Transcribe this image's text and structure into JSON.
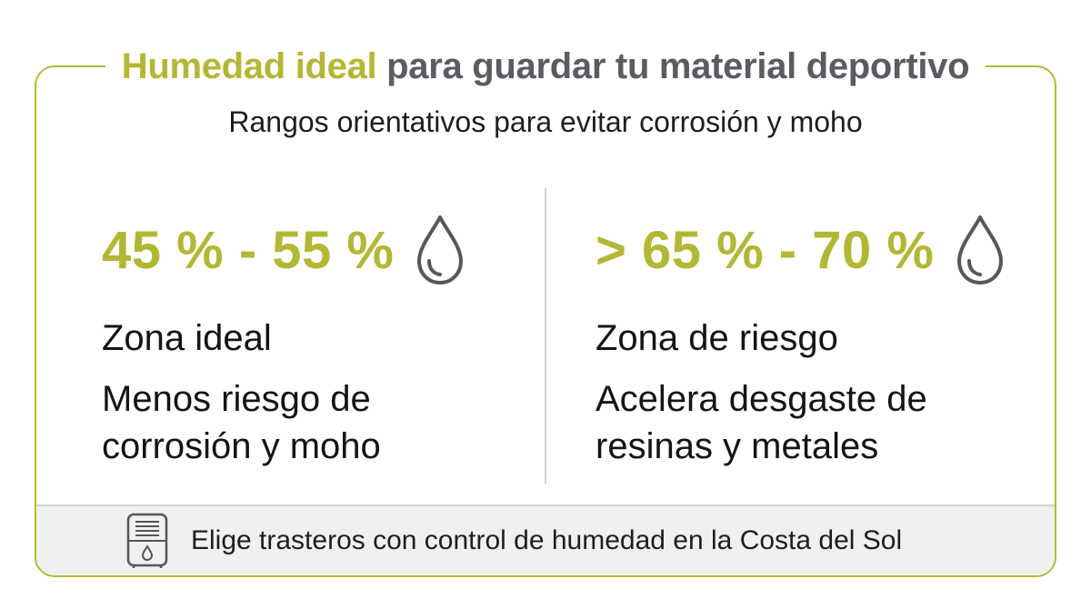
{
  "header": {
    "title_accent": "Humedad ideal",
    "title_rest": " para guardar tu material deportivo",
    "subtitle": "Rangos orientativos para evitar corrosión y moho"
  },
  "ideal": {
    "range": "45 % - 55 %",
    "zone": "Zona ideal",
    "description": "Menos riesgo de corrosión y moho",
    "icon": "water-drop-icon"
  },
  "risk": {
    "range": "> 65 % - 70 %",
    "zone": "Zona de riesgo",
    "description": "Acelera desgaste de resinas y metales",
    "icon": "water-drop-icon"
  },
  "footer": {
    "text": "Elige trasteros con control de humedad en la Costa del Sol",
    "icon": "dehumidifier-icon"
  },
  "colors": {
    "accent": "#b3b734",
    "title_gray": "#5a5c61",
    "text": "#141414",
    "footer_bg": "#f0f0ee"
  }
}
